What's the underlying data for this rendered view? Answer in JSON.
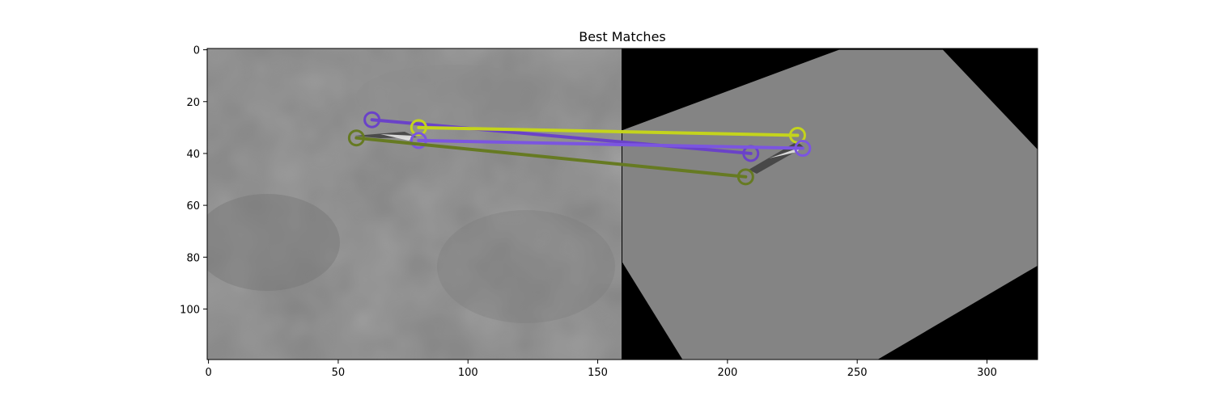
{
  "chart_data": {
    "type": "scatter",
    "title": "Best Matches",
    "xlabel": "",
    "ylabel": "",
    "xlim": [
      -0.5,
      319.5
    ],
    "ylim": [
      119.5,
      -0.5
    ],
    "x_ticks": [
      0,
      50,
      100,
      150,
      200,
      250,
      300
    ],
    "y_ticks": [
      0,
      20,
      40,
      60,
      80,
      100
    ],
    "grid": false,
    "image_boundary_x": 159.5,
    "right_image_rotated_corners": [
      [
        283,
        0
      ],
      [
        320,
        39
      ],
      [
        320,
        83
      ],
      [
        257,
        120
      ],
      [
        183,
        120
      ],
      [
        159.5,
        82
      ],
      [
        159.5,
        31
      ],
      [
        243,
        0
      ]
    ],
    "matches": [
      {
        "p1": [
          63,
          27
        ],
        "p2": [
          209,
          40
        ],
        "color": "#6a42c8"
      },
      {
        "p1": [
          81,
          30
        ],
        "p2": [
          227,
          33
        ],
        "color": "#c4d41c"
      },
      {
        "p1": [
          81,
          35
        ],
        "p2": [
          229,
          38
        ],
        "color": "#7b55e0"
      },
      {
        "p1": [
          57,
          34
        ],
        "p2": [
          207,
          49
        ],
        "color": "#667a22"
      }
    ]
  }
}
